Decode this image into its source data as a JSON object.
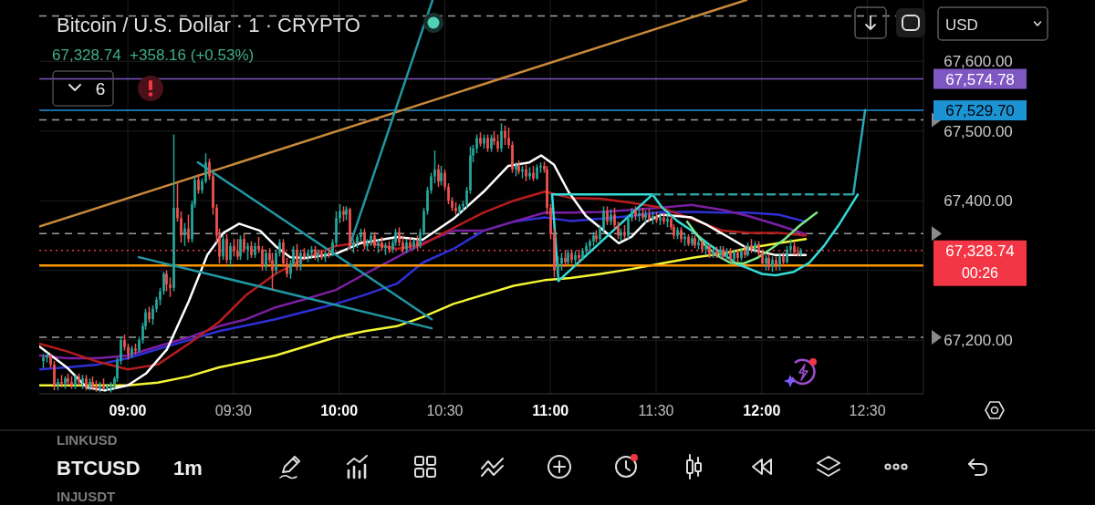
{
  "chart_data": {
    "type": "candlestick",
    "title": "Bitcoin / U.S. Dollar · 1 · CRYPTO",
    "subtitle": "67,328.74  +358.16 (+0.53%)",
    "xlim": [
      8.581,
      12.765
    ],
    "ylim": [
      67123,
      67688
    ],
    "xticks": [
      {
        "value": 9,
        "label": "09:00"
      },
      {
        "value": 9.5,
        "label": "09:30"
      },
      {
        "value": 10,
        "label": "10:00"
      },
      {
        "value": 10.5,
        "label": "10:30"
      },
      {
        "value": 11,
        "label": "11:00"
      },
      {
        "value": 11.5,
        "label": "11:30"
      },
      {
        "value": 12,
        "label": "12:00"
      },
      {
        "value": 12.5,
        "label": "12:30"
      }
    ],
    "yticks": [
      {
        "value": 67200,
        "label": "67,200.00"
      },
      {
        "value": 67300,
        "label": null
      },
      {
        "value": 67400,
        "label": "67,400.00"
      },
      {
        "value": 67500,
        "label": "67,500.00"
      },
      {
        "value": 67600,
        "label": "67,600.00"
      }
    ],
    "grid": true,
    "x": [
      8.6,
      8.617,
      8.633,
      8.65,
      8.667,
      8.683,
      8.7,
      8.717,
      8.733,
      8.75,
      8.767,
      8.783,
      8.8,
      8.817,
      8.833,
      8.85,
      8.867,
      8.883,
      8.9,
      8.917,
      8.933,
      8.95,
      8.967,
      8.983,
      9,
      9.017,
      9.033,
      9.05,
      9.067,
      9.083,
      9.1,
      9.117,
      9.133,
      9.15,
      9.167,
      9.183,
      9.2,
      9.217,
      9.233,
      9.25,
      9.267,
      9.283,
      9.3,
      9.317,
      9.333,
      9.35,
      9.367,
      9.383,
      9.4,
      9.417,
      9.433,
      9.45,
      9.467,
      9.483,
      9.5,
      9.517,
      9.533,
      9.55,
      9.567,
      9.583,
      9.6,
      9.617,
      9.633,
      9.65,
      9.667,
      9.683,
      9.7,
      9.717,
      9.733,
      9.75,
      9.767,
      9.783,
      9.8,
      9.817,
      9.833,
      9.85,
      9.867,
      9.883,
      9.9,
      9.917,
      9.933,
      9.95,
      9.967,
      9.983,
      10,
      10.017,
      10.033,
      10.05,
      10.067,
      10.083,
      10.1,
      10.117,
      10.133,
      10.15,
      10.167,
      10.183,
      10.2,
      10.217,
      10.233,
      10.25,
      10.267,
      10.283,
      10.3,
      10.317,
      10.333,
      10.35,
      10.367,
      10.383,
      10.4,
      10.417,
      10.433,
      10.45,
      10.467,
      10.483,
      10.5,
      10.517,
      10.533,
      10.55,
      10.567,
      10.583,
      10.6,
      10.617,
      10.633,
      10.65,
      10.667,
      10.683,
      10.7,
      10.717,
      10.733,
      10.75,
      10.767,
      10.783,
      10.8,
      10.817,
      10.833,
      10.85,
      10.867,
      10.883,
      10.9,
      10.917,
      10.933,
      10.95,
      10.967,
      10.983,
      11,
      11.017,
      11.033,
      11.05,
      11.067,
      11.083,
      11.1,
      11.117,
      11.133,
      11.15,
      11.167,
      11.183,
      11.2,
      11.217,
      11.233,
      11.25,
      11.267,
      11.283,
      11.3,
      11.317,
      11.333,
      11.35,
      11.367,
      11.383,
      11.4,
      11.417,
      11.433,
      11.45,
      11.467,
      11.483,
      11.5,
      11.517,
      11.533,
      11.55,
      11.567,
      11.583,
      11.6,
      11.617,
      11.633,
      11.65,
      11.667,
      11.683,
      11.7,
      11.717,
      11.733,
      11.75,
      11.767,
      11.783,
      11.8,
      11.817,
      11.833,
      11.85,
      11.867,
      11.883,
      11.9,
      11.917,
      11.933,
      11.95,
      11.967,
      11.983,
      12,
      12.017,
      12.033,
      12.05,
      12.067,
      12.083,
      12.1,
      12.117,
      12.133,
      12.15,
      12.167,
      12.183
    ],
    "ohlc": [
      [
        67170,
        67180,
        67160,
        67175
      ],
      [
        67175,
        67182,
        67168,
        67178
      ],
      [
        67178,
        67180,
        67160,
        67165
      ],
      [
        67165,
        67170,
        67128,
        67135
      ],
      [
        67135,
        67145,
        67128,
        67140
      ],
      [
        67140,
        67150,
        67132,
        67138
      ],
      [
        67138,
        67148,
        67130,
        67145
      ],
      [
        67145,
        67152,
        67135,
        67140
      ],
      [
        67140,
        67148,
        67130,
        67135
      ],
      [
        67135,
        67150,
        67130,
        67148
      ],
      [
        67148,
        67152,
        67135,
        67140
      ],
      [
        67140,
        67150,
        67130,
        67145
      ],
      [
        67145,
        67150,
        67128,
        67132
      ],
      [
        67132,
        67145,
        67128,
        67140
      ],
      [
        67140,
        67148,
        67130,
        67135
      ],
      [
        67135,
        67142,
        67126,
        67130
      ],
      [
        67130,
        67140,
        67125,
        67135
      ],
      [
        67135,
        67145,
        67128,
        67130
      ],
      [
        67130,
        67137,
        67127,
        67134
      ],
      [
        67134,
        67140,
        67125,
        67135
      ],
      [
        67135,
        67148,
        67130,
        67145
      ],
      [
        67145,
        67175,
        67140,
        67170
      ],
      [
        67170,
        67205,
        67165,
        67200
      ],
      [
        67200,
        67208,
        67185,
        67190
      ],
      [
        67190,
        67195,
        67172,
        67180
      ],
      [
        67180,
        67192,
        67175,
        67188
      ],
      [
        67188,
        67195,
        67180,
        67185
      ],
      [
        67185,
        67205,
        67182,
        67200
      ],
      [
        67200,
        67225,
        67195,
        67220
      ],
      [
        67220,
        67245,
        67215,
        67240
      ],
      [
        67240,
        67248,
        67225,
        67230
      ],
      [
        67230,
        67250,
        67222,
        67245
      ],
      [
        67245,
        67262,
        67240,
        67258
      ],
      [
        67258,
        67275,
        67250,
        67270
      ],
      [
        67270,
        67298,
        67265,
        67295
      ],
      [
        67295,
        67300,
        67270,
        67280
      ],
      [
        67280,
        67290,
        67262,
        67275
      ],
      [
        67275,
        67495,
        67270,
        67390
      ],
      [
        67390,
        67425,
        67370,
        67375
      ],
      [
        67375,
        67385,
        67340,
        67350
      ],
      [
        67350,
        67368,
        67335,
        67360
      ],
      [
        67360,
        67380,
        67340,
        67345
      ],
      [
        67345,
        67400,
        67340,
        67395
      ],
      [
        67395,
        67435,
        67390,
        67430
      ],
      [
        67430,
        67438,
        67410,
        67415
      ],
      [
        67415,
        67432,
        67410,
        67428
      ],
      [
        67428,
        67468,
        67425,
        67455
      ],
      [
        67455,
        67460,
        67430,
        67435
      ],
      [
        67435,
        67440,
        67380,
        67390
      ],
      [
        67390,
        67395,
        67340,
        67350
      ],
      [
        67350,
        67360,
        67310,
        67320
      ],
      [
        67320,
        67350,
        67315,
        67345
      ],
      [
        67345,
        67352,
        67310,
        67315
      ],
      [
        67315,
        67340,
        67305,
        67335
      ],
      [
        67335,
        67345,
        67320,
        67328
      ],
      [
        67328,
        67345,
        67315,
        67320
      ],
      [
        67320,
        67350,
        67315,
        67345
      ],
      [
        67345,
        67352,
        67325,
        67330
      ],
      [
        67330,
        67340,
        67315,
        67335
      ],
      [
        67335,
        67342,
        67318,
        67322
      ],
      [
        67322,
        67340,
        67318,
        67335
      ],
      [
        67335,
        67348,
        67325,
        67330
      ],
      [
        67330,
        67335,
        67300,
        67305
      ],
      [
        67305,
        67330,
        67300,
        67325
      ],
      [
        67325,
        67332,
        67310,
        67315
      ],
      [
        67315,
        67325,
        67272,
        67300
      ],
      [
        67300,
        67330,
        67295,
        67325
      ],
      [
        67325,
        67345,
        67320,
        67340
      ],
      [
        67340,
        67345,
        67305,
        67310
      ],
      [
        67310,
        67318,
        67290,
        67295
      ],
      [
        67295,
        67315,
        67288,
        67310
      ],
      [
        67310,
        67335,
        67305,
        67330
      ],
      [
        67330,
        67338,
        67300,
        67305
      ],
      [
        67305,
        67330,
        67300,
        67325
      ],
      [
        67325,
        67332,
        67315,
        67320
      ],
      [
        67320,
        67330,
        67312,
        67325
      ],
      [
        67325,
        67335,
        67318,
        67330
      ],
      [
        67330,
        67335,
        67315,
        67320
      ],
      [
        67320,
        67330,
        67312,
        67325
      ],
      [
        67325,
        67330,
        67315,
        67318
      ],
      [
        67318,
        67328,
        67312,
        67325
      ],
      [
        67325,
        67332,
        67318,
        67322
      ],
      [
        67322,
        67345,
        67320,
        67340
      ],
      [
        67340,
        67385,
        67335,
        67375
      ],
      [
        67375,
        67395,
        67368,
        67385
      ],
      [
        67385,
        67392,
        67370,
        67380
      ],
      [
        67380,
        67392,
        67372,
        67388
      ],
      [
        67388,
        67390,
        67330,
        67335
      ],
      [
        67335,
        67345,
        67325,
        67340
      ],
      [
        67340,
        67352,
        67332,
        67348
      ],
      [
        67348,
        67360,
        67340,
        67355
      ],
      [
        67355,
        67360,
        67330,
        67335
      ],
      [
        67335,
        67345,
        67328,
        67340
      ],
      [
        67340,
        67355,
        67335,
        67350
      ],
      [
        67350,
        67355,
        67332,
        67335
      ],
      [
        67335,
        67345,
        67325,
        67340
      ],
      [
        67340,
        67348,
        67328,
        67332
      ],
      [
        67332,
        67340,
        67322,
        67335
      ],
      [
        67335,
        67342,
        67325,
        67330
      ],
      [
        67330,
        67345,
        67325,
        67340
      ],
      [
        67340,
        67360,
        67335,
        67355
      ],
      [
        67355,
        67362,
        67335,
        67340
      ],
      [
        67340,
        67350,
        67325,
        67330
      ],
      [
        67330,
        67345,
        67325,
        67340
      ],
      [
        67340,
        67348,
        67330,
        67335
      ],
      [
        67335,
        67345,
        67330,
        67342
      ],
      [
        67342,
        67350,
        67330,
        67335
      ],
      [
        67335,
        67360,
        67332,
        67355
      ],
      [
        67355,
        67390,
        67350,
        67385
      ],
      [
        67385,
        67420,
        67380,
        67415
      ],
      [
        67415,
        67440,
        67410,
        67435
      ],
      [
        67435,
        67472,
        67425,
        67445
      ],
      [
        67445,
        67452,
        67420,
        67428
      ],
      [
        67428,
        67450,
        67422,
        67440
      ],
      [
        67440,
        67445,
        67415,
        67420
      ],
      [
        67420,
        67425,
        67395,
        67400
      ],
      [
        67400,
        67405,
        67385,
        67390
      ],
      [
        67390,
        67398,
        67380,
        67385
      ],
      [
        67385,
        67395,
        67380,
        67392
      ],
      [
        67392,
        67400,
        67385,
        67395
      ],
      [
        67395,
        67420,
        67390,
        67415
      ],
      [
        67415,
        67478,
        67410,
        67465
      ],
      [
        67465,
        67480,
        67455,
        67475
      ],
      [
        67475,
        67495,
        67468,
        67490
      ],
      [
        67490,
        67498,
        67478,
        67482
      ],
      [
        67482,
        67495,
        67475,
        67490
      ],
      [
        67490,
        67495,
        67470,
        67475
      ],
      [
        67475,
        67495,
        67470,
        67490
      ],
      [
        67490,
        67500,
        67480,
        67485
      ],
      [
        67485,
        67495,
        67470,
        67475
      ],
      [
        67475,
        67511,
        67470,
        67500
      ],
      [
        67500,
        67508,
        67480,
        67490
      ],
      [
        67490,
        67505,
        67475,
        67480
      ],
      [
        67480,
        67485,
        67440,
        67445
      ],
      [
        67445,
        67455,
        67435,
        67450
      ],
      [
        67450,
        67458,
        67438,
        67442
      ],
      [
        67442,
        67450,
        67432,
        67445
      ],
      [
        67445,
        67452,
        67428,
        67435
      ],
      [
        67435,
        67448,
        67430,
        67440
      ],
      [
        67440,
        67450,
        67428,
        67432
      ],
      [
        67432,
        67452,
        67430,
        67448
      ],
      [
        67448,
        67455,
        67440,
        67450
      ],
      [
        67450,
        67456,
        67440,
        67445
      ],
      [
        67445,
        67450,
        67380,
        67390
      ],
      [
        67390,
        67395,
        67345,
        67352
      ],
      [
        67352,
        67360,
        67290,
        67300
      ],
      [
        67300,
        67320,
        67288,
        67310
      ],
      [
        67310,
        67325,
        67300,
        67318
      ],
      [
        67318,
        67328,
        67305,
        67312
      ],
      [
        67312,
        67330,
        67308,
        67325
      ],
      [
        67325,
        67330,
        67310,
        67315
      ],
      [
        67315,
        67328,
        67308,
        67322
      ],
      [
        67322,
        67330,
        67312,
        67318
      ],
      [
        67318,
        67332,
        67315,
        67328
      ],
      [
        67328,
        67340,
        67322,
        67335
      ],
      [
        67335,
        67345,
        67328,
        67342
      ],
      [
        67342,
        67355,
        67335,
        67350
      ],
      [
        67350,
        67358,
        67340,
        67345
      ],
      [
        67345,
        67365,
        67342,
        67360
      ],
      [
        67360,
        67392,
        67355,
        67385
      ],
      [
        67385,
        67392,
        67365,
        67370
      ],
      [
        67370,
        67388,
        67365,
        67380
      ],
      [
        67380,
        67390,
        67360,
        67365
      ],
      [
        67365,
        67370,
        67345,
        67350
      ],
      [
        67350,
        67360,
        67342,
        67355
      ],
      [
        67355,
        67365,
        67345,
        67350
      ],
      [
        67350,
        67380,
        67345,
        67375
      ],
      [
        67375,
        67390,
        67370,
        67385
      ],
      [
        67385,
        67392,
        67372,
        67378
      ],
      [
        67378,
        67388,
        67370,
        67382
      ],
      [
        67382,
        67390,
        67372,
        67376
      ],
      [
        67376,
        67386,
        67368,
        67380
      ],
      [
        67380,
        67388,
        67370,
        67374
      ],
      [
        67374,
        67385,
        67366,
        67378
      ],
      [
        67378,
        67384,
        67368,
        67372
      ],
      [
        67372,
        67382,
        67365,
        67376
      ],
      [
        67376,
        67382,
        67366,
        67370
      ],
      [
        67370,
        67380,
        67362,
        67374
      ],
      [
        67374,
        67378,
        67358,
        67362
      ],
      [
        67362,
        67366,
        67345,
        67350
      ],
      [
        67350,
        67362,
        67345,
        67358
      ],
      [
        67358,
        67362,
        67340,
        67345
      ],
      [
        67345,
        67352,
        67335,
        67348
      ],
      [
        67348,
        67352,
        67335,
        67338
      ],
      [
        67338,
        67350,
        67335,
        67346
      ],
      [
        67346,
        67350,
        67332,
        67336
      ],
      [
        67336,
        67345,
        67330,
        67340
      ],
      [
        67340,
        67344,
        67325,
        67330
      ],
      [
        67330,
        67338,
        67322,
        67334
      ],
      [
        67334,
        67338,
        67318,
        67322
      ],
      [
        67322,
        67332,
        67318,
        67328
      ],
      [
        67328,
        67334,
        67318,
        67322
      ],
      [
        67322,
        67335,
        67318,
        67330
      ],
      [
        67330,
        67335,
        67316,
        67320
      ],
      [
        67320,
        67332,
        67316,
        67328
      ],
      [
        67328,
        67332,
        67312,
        67316
      ],
      [
        67316,
        67330,
        67312,
        67326
      ],
      [
        67326,
        67330,
        67312,
        67318
      ],
      [
        67318,
        67332,
        67314,
        67328
      ],
      [
        67328,
        67336,
        67318,
        67322
      ],
      [
        67322,
        67340,
        67320,
        67336
      ],
      [
        67336,
        67345,
        67325,
        67330
      ],
      [
        67330,
        67342,
        67325,
        67338
      ],
      [
        67338,
        67342,
        67320,
        67325
      ],
      [
        67325,
        67330,
        67305,
        67310
      ],
      [
        67310,
        67322,
        67300,
        67318
      ],
      [
        67318,
        67324,
        67300,
        67305
      ],
      [
        67305,
        67320,
        67298,
        67315
      ],
      [
        67315,
        67320,
        67300,
        67308
      ],
      [
        67308,
        67325,
        67300,
        67320
      ],
      [
        67320,
        67326,
        67305,
        67312
      ],
      [
        67312,
        67335,
        67310,
        67330
      ],
      [
        67330,
        67345,
        67325,
        67335
      ],
      [
        67335,
        67340,
        67322,
        67326
      ],
      [
        67326,
        67334,
        67320,
        67324
      ],
      [
        67324,
        67332,
        67320,
        67328.74
      ]
    ],
    "series": [
      {
        "type": "line",
        "color": "#f5f534",
        "x": [
          8.581,
          8.711,
          8.858,
          9.0,
          9.142,
          9.289,
          9.432,
          9.561,
          9.699,
          9.842,
          9.984,
          10.123,
          10.274,
          10.395,
          10.541,
          10.684,
          10.826,
          10.973,
          11.094,
          11.237,
          11.383,
          11.526,
          11.668,
          11.815,
          11.936,
          12.079,
          12.208
        ],
        "values": [
          67135,
          67135,
          67135,
          67135,
          67139,
          67148,
          67161,
          67169,
          67178,
          67191,
          67204,
          67213,
          67220,
          67233,
          67252,
          67265,
          67278,
          67286,
          67289,
          67295,
          67302,
          67310,
          67318,
          67324,
          67332,
          67339,
          67345
        ]
      },
      {
        "type": "line",
        "color": "#2f2fd6",
        "x": [
          8.581,
          8.711,
          8.858,
          9.0,
          9.142,
          9.289,
          9.432,
          9.561,
          9.699,
          9.842,
          9.984,
          10.123,
          10.274,
          10.395,
          10.541,
          10.684,
          10.826,
          10.973,
          11.094,
          11.237,
          11.383,
          11.526,
          11.668,
          11.815,
          11.936,
          12.079,
          12.208
        ],
        "values": [
          67158,
          67161,
          67165,
          67174,
          67187,
          67200,
          67213,
          67221,
          67230,
          67241,
          67252,
          67265,
          67281,
          67311,
          67331,
          67357,
          67370,
          67376,
          67371,
          67374,
          67378,
          67384,
          67384,
          67383,
          67383,
          67380,
          67370
        ]
      },
      {
        "type": "line",
        "color": "#7b1fa2",
        "x": [
          8.581,
          8.711,
          8.858,
          9.0,
          9.142,
          9.289,
          9.432,
          9.561,
          9.699,
          9.842,
          9.984,
          10.123,
          10.274,
          10.395,
          10.541,
          10.684,
          10.826,
          10.973,
          11.094,
          11.237,
          11.383,
          11.526,
          11.668,
          11.815,
          11.936,
          12.079,
          12.208
        ],
        "values": [
          67178,
          67174,
          67174,
          67178,
          67191,
          67204,
          67220,
          67230,
          67247,
          67259,
          67272,
          67295,
          67319,
          67339,
          67357,
          67357,
          67370,
          67383,
          67383,
          67384,
          67387,
          67390,
          67394,
          67387,
          67378,
          67365,
          67352
        ]
      },
      {
        "type": "line",
        "color": "#b71c1c",
        "x": [
          8.581,
          8.711,
          8.858,
          9.0,
          9.142,
          9.289,
          9.432,
          9.561,
          9.699,
          9.842,
          9.984,
          10.123,
          10.274,
          10.395,
          10.541,
          10.684,
          10.826,
          10.973,
          11.094,
          11.237,
          11.383,
          11.526,
          11.668,
          11.815,
          11.936,
          12.079,
          12.208
        ],
        "values": [
          67195,
          67184,
          67169,
          67158,
          67165,
          67195,
          67226,
          67265,
          67295,
          67318,
          67335,
          67341,
          67331,
          67337,
          67361,
          67383,
          67400,
          67413,
          67404,
          67403,
          67397,
          67390,
          67374,
          67357,
          67354,
          67354,
          67350
        ]
      },
      {
        "type": "line",
        "color": "#ffffff",
        "x": [
          8.581,
          8.711,
          8.806,
          8.892,
          9.0,
          9.086,
          9.186,
          9.289,
          9.376,
          9.453,
          9.527,
          9.626,
          9.699,
          9.769,
          9.842,
          9.984,
          10.101,
          10.274,
          10.395,
          10.541,
          10.684,
          10.801,
          10.9,
          10.956,
          11.016,
          11.085,
          11.168,
          11.237,
          11.323,
          11.383,
          11.453,
          11.526,
          11.668,
          11.742,
          11.841,
          11.936,
          12.066,
          12.208
        ],
        "values": [
          67191,
          67161,
          67132,
          67128,
          67135,
          67152,
          67187,
          67256,
          67322,
          67354,
          67367,
          67357,
          67335,
          67319,
          67318,
          67324,
          67339,
          67348,
          67344,
          67374,
          67413,
          67450,
          67455,
          67465,
          67452,
          67413,
          67378,
          67361,
          67339,
          67348,
          67370,
          67380,
          67376,
          67365,
          67348,
          67331,
          67322,
          67322
        ]
      },
      {
        "type": "line",
        "color": "#ff9800",
        "x": [
          8.581,
          12.765
        ],
        "values": [
          67307,
          67307
        ]
      },
      {
        "type": "line",
        "color": "#c98a3a",
        "x": [
          8.581,
          11.927
        ],
        "values": [
          67363,
          67688
        ]
      },
      {
        "type": "line",
        "color": "#2196a3",
        "x": [
          9.332,
          10.438
        ],
        "values": [
          67455,
          67230
        ]
      },
      {
        "type": "line",
        "color": "#2196a3",
        "x": [
          9.052,
          10.438
        ],
        "values": [
          67319,
          67217
        ]
      },
      {
        "type": "line",
        "color": "#2196a3",
        "x": [
          10.045,
          10.442
        ],
        "values": [
          67331,
          67688
        ]
      },
      {
        "type": "line",
        "color": "#34dcd8",
        "x": [
          11.008,
          11.038
        ],
        "values": [
          67409,
          67285
        ]
      },
      {
        "type": "line",
        "color": "#34dcd8",
        "x": [
          11.008,
          11.483
        ],
        "values": [
          67409,
          67409
        ]
      },
      {
        "type": "line",
        "color": "#34dcd8",
        "x": [
          11.038,
          11.483
        ],
        "values": [
          67285,
          67409
        ]
      },
      {
        "type": "line",
        "color": "#34dcd8",
        "x": [
          11.483,
          11.526,
          11.6,
          11.668,
          11.742,
          11.815,
          11.884,
          11.936,
          12.001,
          12.066,
          12.152,
          12.225,
          12.294,
          12.368,
          12.454
        ],
        "values": [
          67409,
          67391,
          67371,
          67357,
          67339,
          67324,
          67309,
          67303,
          67295,
          67293,
          67298,
          67311,
          67335,
          67367,
          67409
        ]
      },
      {
        "type": "line",
        "color": "#2a9d9d",
        "line_style": "dashed",
        "x": [
          11.483,
          12.424
        ],
        "values": [
          67409,
          67409
        ]
      },
      {
        "type": "line",
        "color": "#29a9b8",
        "x": [
          12.433,
          12.489
        ],
        "values": [
          67409,
          67530
        ]
      },
      {
        "type": "line",
        "color": "#7ee787",
        "x": [
          11.647,
          11.686,
          11.729,
          11.785,
          11.85,
          11.915,
          11.979,
          12.044,
          12.109,
          12.182,
          12.26
        ],
        "values": [
          67370,
          67354,
          67337,
          67322,
          67311,
          67310,
          67318,
          67331,
          67345,
          67365,
          67383
        ]
      }
    ],
    "ref_lines": [
      {
        "axis": "y",
        "value": 67665,
        "color": "#9e9e9e",
        "line_style": "dashed"
      },
      {
        "axis": "y",
        "value": 67574.78,
        "label": "67,574.78",
        "color": "#7e57c2",
        "line_style": "solid"
      },
      {
        "axis": "y",
        "value": 67529.7,
        "label": "67,529.70",
        "color": "#1c94d4",
        "line_style": "solid"
      },
      {
        "axis": "y",
        "value": 67516,
        "color": "#9e9e9e",
        "line_style": "dashed"
      },
      {
        "axis": "y",
        "value": 67353,
        "color": "#9e9e9e",
        "line_style": "dashed"
      },
      {
        "axis": "y",
        "value": 67328.74,
        "label": "67,328.74",
        "color": "#f23645",
        "line_style": "dotted"
      },
      {
        "axis": "y",
        "value": 67204,
        "color": "#9e9e9e",
        "line_style": "dashed"
      }
    ],
    "annotations": [
      "6",
      "00:26",
      "USD",
      "BTCUSD",
      "1m",
      "LINKUSD",
      "INJUSDT"
    ]
  }
}
